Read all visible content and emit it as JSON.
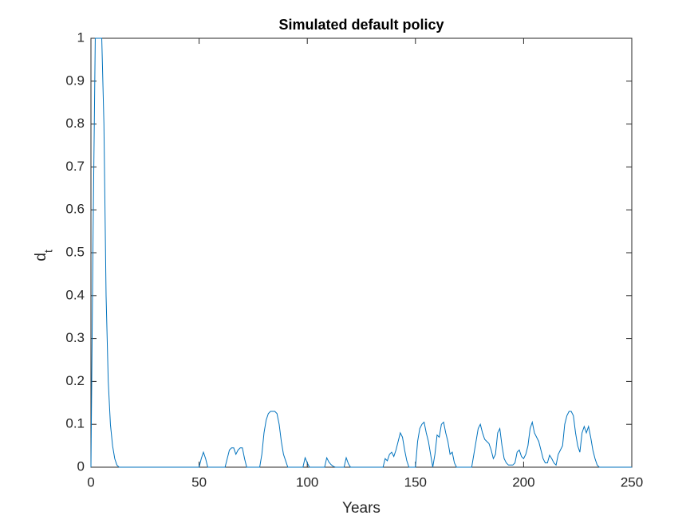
{
  "chart_data": {
    "type": "line",
    "title": "Simulated default policy",
    "xlabel": "Years",
    "ylabel": "d",
    "ylabel_subscript": "t",
    "x": [
      0,
      1,
      2,
      3,
      4,
      5,
      6,
      7,
      8,
      9,
      10,
      11,
      12,
      13,
      50,
      51,
      52,
      53,
      54,
      62,
      63,
      64,
      65,
      66,
      67,
      68,
      69,
      70,
      71,
      72,
      78,
      79,
      80,
      81,
      82,
      83,
      84,
      85,
      86,
      87,
      88,
      89,
      90,
      91,
      98,
      99,
      100,
      101,
      108,
      109,
      110,
      111,
      112,
      113,
      117,
      118,
      119,
      120,
      135,
      136,
      137,
      138,
      139,
      140,
      141,
      142,
      143,
      144,
      145,
      146,
      147,
      150,
      151,
      152,
      153,
      154,
      155,
      156,
      157,
      158,
      159,
      160,
      161,
      162,
      163,
      164,
      165,
      166,
      167,
      168,
      169,
      176,
      177,
      178,
      179,
      180,
      181,
      182,
      183,
      184,
      185,
      186,
      187,
      188,
      189,
      190,
      191,
      192,
      193,
      194,
      195,
      196,
      197,
      198,
      199,
      200,
      201,
      202,
      203,
      204,
      205,
      206,
      207,
      208,
      209,
      210,
      211,
      212,
      213,
      214,
      215,
      216,
      217,
      218,
      219,
      220,
      221,
      222,
      223,
      224,
      225,
      226,
      227,
      228,
      229,
      230,
      231,
      232,
      233,
      234,
      235,
      250
    ],
    "series": [
      {
        "color": "#0072bd",
        "values": [
          0,
          0.55,
          1,
          1,
          1,
          1,
          0.8,
          0.4,
          0.2,
          0.1,
          0.05,
          0.02,
          0.005,
          0,
          0,
          0.02,
          0.035,
          0.02,
          0,
          0,
          0.02,
          0.04,
          0.045,
          0.045,
          0.03,
          0.04,
          0.045,
          0.045,
          0.02,
          0,
          0,
          0.03,
          0.08,
          0.11,
          0.125,
          0.13,
          0.13,
          0.13,
          0.125,
          0.1,
          0.06,
          0.03,
          0.015,
          0,
          0,
          0.022,
          0.01,
          0,
          0,
          0.022,
          0.012,
          0.006,
          0.002,
          0,
          0,
          0.022,
          0.008,
          0,
          0,
          0.02,
          0.015,
          0.03,
          0.035,
          0.025,
          0.04,
          0.06,
          0.08,
          0.07,
          0.04,
          0.015,
          0,
          0,
          0.06,
          0.09,
          0.1,
          0.105,
          0.08,
          0.06,
          0.03,
          0,
          0.03,
          0.075,
          0.07,
          0.1,
          0.105,
          0.08,
          0.06,
          0.03,
          0.035,
          0.01,
          0,
          0,
          0.03,
          0.06,
          0.09,
          0.1,
          0.08,
          0.065,
          0.06,
          0.055,
          0.04,
          0.02,
          0.03,
          0.08,
          0.09,
          0.05,
          0.02,
          0.01,
          0.005,
          0.005,
          0.005,
          0.01,
          0.035,
          0.04,
          0.025,
          0.02,
          0.03,
          0.05,
          0.09,
          0.105,
          0.08,
          0.07,
          0.06,
          0.04,
          0.02,
          0.01,
          0.01,
          0.028,
          0.02,
          0.01,
          0.005,
          0.03,
          0.04,
          0.05,
          0.1,
          0.12,
          0.13,
          0.13,
          0.12,
          0.08,
          0.05,
          0.035,
          0.08,
          0.095,
          0.08,
          0.095,
          0.07,
          0.04,
          0.02,
          0.005,
          0,
          0
        ]
      }
    ],
    "xlim": [
      0,
      250
    ],
    "xticks": [
      0,
      50,
      100,
      150,
      200,
      250
    ],
    "ylim": [
      0,
      1
    ],
    "yticks": [
      0,
      0.1,
      0.2,
      0.3,
      0.4,
      0.5,
      0.6,
      0.7,
      0.8,
      0.9,
      1
    ]
  }
}
